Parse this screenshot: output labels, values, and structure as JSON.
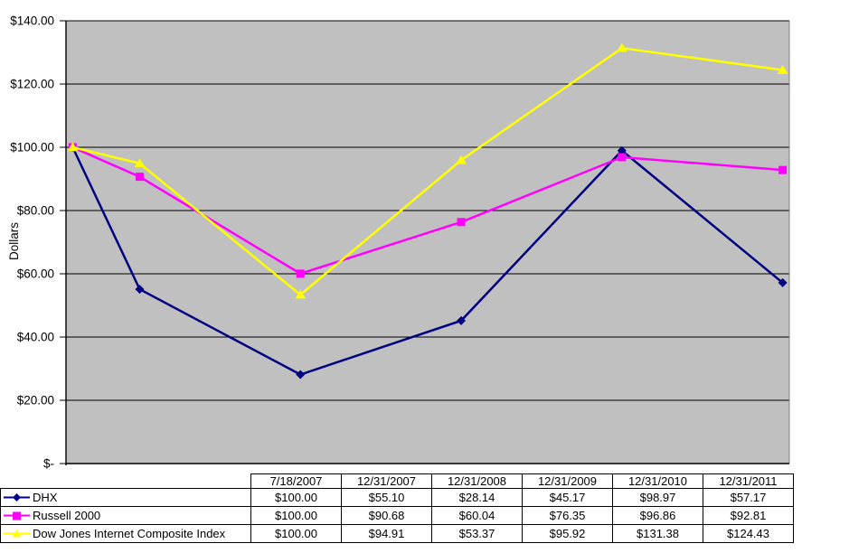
{
  "chart_data": {
    "type": "line",
    "title": "",
    "xlabel": "",
    "ylabel": "Dollars",
    "ylim": [
      0,
      140
    ],
    "y_tick_step": 20,
    "y_tick_labels": [
      "$140.00",
      "$120.00",
      "$100.00",
      "$80.00",
      "$60.00",
      "$40.00",
      "$20.00",
      "$-"
    ],
    "grid": true,
    "plot_bg_color": "#c0c0c0",
    "gridline_color": "#000000",
    "plot_border_color": "#808080",
    "text_color": "#000000",
    "legend_position": "data-table-left-column",
    "categories": [
      "7/18/2007",
      "12/31/2007",
      "12/31/2008",
      "12/31/2009",
      "12/31/2010",
      "12/31/2011"
    ],
    "x_month_offsets": [
      0,
      5,
      17,
      29,
      41,
      53
    ],
    "x_months_total": 54,
    "series": [
      {
        "name": "DHX",
        "color": "#000080",
        "marker": "diamond",
        "values": [
          100.0,
          55.1,
          28.14,
          45.17,
          98.97,
          57.17
        ],
        "table_values": [
          "$100.00",
          "$55.10",
          "$28.14",
          "$45.17",
          "$98.97",
          "$57.17"
        ]
      },
      {
        "name": "Russell 2000",
        "color": "#ff00ff",
        "marker": "square",
        "values": [
          100.0,
          90.68,
          60.04,
          76.35,
          96.86,
          92.81
        ],
        "table_values": [
          "$100.00",
          "$90.68",
          "$60.04",
          "$76.35",
          "$96.86",
          "$92.81"
        ]
      },
      {
        "name": "Dow Jones Internet Composite Index",
        "color": "#ffff00",
        "marker": "triangle",
        "values": [
          100.0,
          94.91,
          53.37,
          95.92,
          131.38,
          124.43
        ],
        "table_values": [
          "$100.00",
          "$94.91",
          "$53.37",
          "$95.92",
          "$131.38",
          "$124.43"
        ]
      }
    ]
  }
}
